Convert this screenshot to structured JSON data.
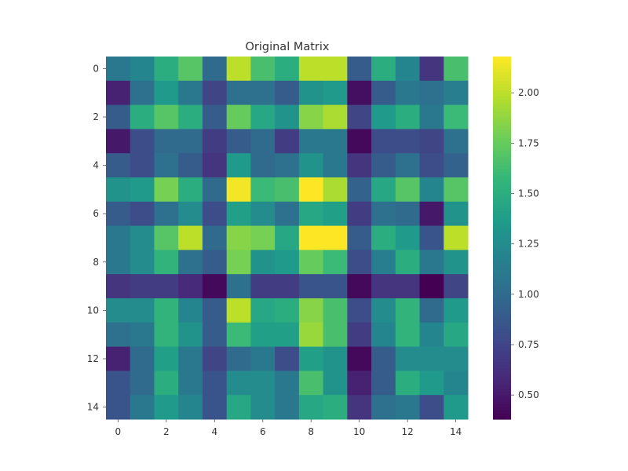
{
  "chart_data": {
    "type": "heatmap",
    "title": "Original Matrix",
    "xlabel": "",
    "ylabel": "",
    "rows": 15,
    "cols": 15,
    "x_ticks": [
      "0",
      "2",
      "4",
      "6",
      "8",
      "10",
      "12",
      "14"
    ],
    "x_tick_values": [
      0,
      2,
      4,
      6,
      8,
      10,
      12,
      14
    ],
    "y_ticks": [
      "0",
      "2",
      "4",
      "6",
      "8",
      "10",
      "12",
      "14"
    ],
    "y_tick_values": [
      0,
      2,
      4,
      6,
      8,
      10,
      12,
      14
    ],
    "colormap": "viridis",
    "vmin": 0.38,
    "vmax": 2.18,
    "colorbar_ticks": [
      "0.50",
      "0.75",
      "1.00",
      "1.25",
      "1.50",
      "1.75",
      "2.00"
    ],
    "colorbar_tick_values": [
      0.5,
      0.75,
      1.0,
      1.25,
      1.5,
      1.75,
      2.0
    ],
    "values": [
      [
        1.1,
        1.2,
        1.5,
        1.7,
        1.0,
        2.0,
        1.65,
        1.5,
        2.0,
        2.0,
        0.9,
        1.5,
        1.2,
        0.65,
        1.65
      ],
      [
        0.55,
        1.05,
        1.35,
        1.1,
        0.75,
        1.05,
        1.05,
        0.9,
        1.3,
        1.35,
        0.45,
        0.9,
        1.1,
        1.05,
        1.15
      ],
      [
        0.9,
        1.5,
        1.7,
        1.5,
        0.9,
        1.75,
        1.45,
        1.3,
        1.85,
        1.95,
        0.75,
        1.35,
        1.5,
        1.1,
        1.6
      ],
      [
        0.5,
        0.8,
        1.0,
        1.0,
        0.7,
        0.9,
        1.0,
        0.7,
        1.1,
        1.1,
        0.42,
        0.8,
        0.8,
        0.75,
        1.05
      ],
      [
        0.9,
        0.8,
        1.05,
        0.9,
        0.65,
        1.35,
        1.0,
        1.05,
        1.3,
        1.1,
        0.65,
        0.9,
        1.05,
        0.8,
        0.95
      ],
      [
        1.3,
        1.35,
        1.8,
        1.5,
        1.0,
        2.15,
        1.6,
        1.65,
        2.18,
        1.95,
        0.95,
        1.45,
        1.7,
        1.2,
        1.7
      ],
      [
        0.9,
        0.8,
        1.05,
        1.25,
        0.8,
        1.4,
        1.25,
        1.05,
        1.45,
        1.4,
        0.7,
        1.05,
        1.0,
        0.5,
        1.3
      ],
      [
        1.1,
        1.25,
        1.7,
        2.0,
        1.0,
        1.85,
        1.8,
        1.45,
        2.18,
        2.18,
        0.9,
        1.5,
        1.35,
        0.85,
        2.0
      ],
      [
        1.1,
        1.25,
        1.55,
        1.05,
        0.9,
        1.8,
        1.3,
        1.35,
        1.75,
        1.6,
        0.8,
        1.15,
        1.5,
        1.1,
        1.3
      ],
      [
        0.65,
        0.7,
        0.7,
        0.6,
        0.42,
        1.05,
        0.7,
        0.7,
        0.85,
        0.85,
        0.42,
        0.65,
        0.65,
        0.38,
        0.75
      ],
      [
        1.25,
        1.25,
        1.55,
        1.2,
        0.9,
        2.0,
        1.45,
        1.5,
        1.85,
        1.65,
        0.8,
        1.25,
        1.55,
        1.0,
        1.35
      ],
      [
        1.05,
        1.1,
        1.55,
        1.3,
        0.9,
        1.6,
        1.4,
        1.4,
        1.9,
        1.65,
        0.7,
        1.2,
        1.55,
        1.2,
        1.45
      ],
      [
        0.55,
        1.0,
        1.4,
        1.1,
        0.75,
        1.0,
        1.1,
        0.8,
        1.4,
        1.3,
        0.42,
        0.9,
        1.25,
        1.25,
        1.25
      ],
      [
        0.85,
        1.0,
        1.5,
        1.1,
        0.85,
        1.25,
        1.25,
        1.1,
        1.65,
        1.3,
        0.55,
        0.9,
        1.5,
        1.35,
        1.2
      ],
      [
        0.85,
        1.1,
        1.35,
        1.2,
        0.85,
        1.45,
        1.25,
        1.1,
        1.45,
        1.5,
        0.65,
        1.05,
        1.1,
        0.8,
        1.35
      ]
    ]
  }
}
